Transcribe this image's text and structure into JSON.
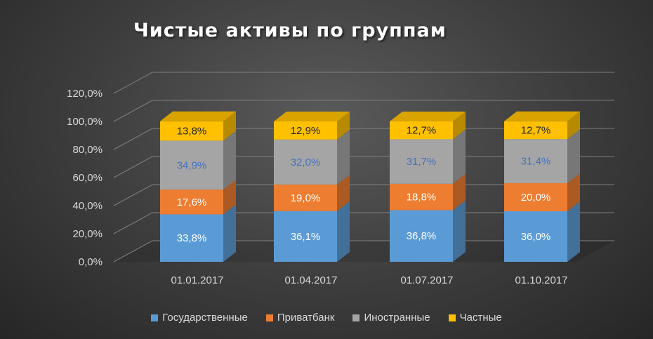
{
  "chart_data": {
    "type": "bar",
    "stacked": true,
    "style": "3d",
    "title": "Чистые активы по группам",
    "categories": [
      "01.01.2017",
      "01.04.2017",
      "01.07.2017",
      "01.10.2017"
    ],
    "series": [
      {
        "name": "Государственные",
        "color": "#5b9bd5",
        "values": [
          33.8,
          36.1,
          36.8,
          36.0
        ],
        "labels": [
          "33,8%",
          "36,1%",
          "36,8%",
          "36,0%"
        ],
        "label_color": "#ffffff"
      },
      {
        "name": "Приватбанк",
        "color": "#ed7d31",
        "values": [
          17.6,
          19.0,
          18.8,
          20.0
        ],
        "labels": [
          "17,6%",
          "19,0%",
          "18,8%",
          "20,0%"
        ],
        "label_color": "#ffffff"
      },
      {
        "name": "Иностранные",
        "color": "#a5a5a5",
        "values": [
          34.9,
          32.0,
          31.7,
          31.4
        ],
        "labels": [
          "34,9%",
          "32,0%",
          "31,7%",
          "31,4%"
        ],
        "label_color": "#4472c4"
      },
      {
        "name": "Частные",
        "color": "#ffc000",
        "values": [
          13.8,
          12.9,
          12.7,
          12.7
        ],
        "labels": [
          "13,8%",
          "12,9%",
          "12,7%",
          "12,7%"
        ],
        "label_color": "#262626"
      }
    ],
    "yticks": [
      "0,0%",
      "20,0%",
      "40,0%",
      "60,0%",
      "80,0%",
      "100,0%",
      "120,0%"
    ],
    "ylim": [
      0,
      120
    ],
    "grid": true,
    "legend_position": "bottom"
  }
}
